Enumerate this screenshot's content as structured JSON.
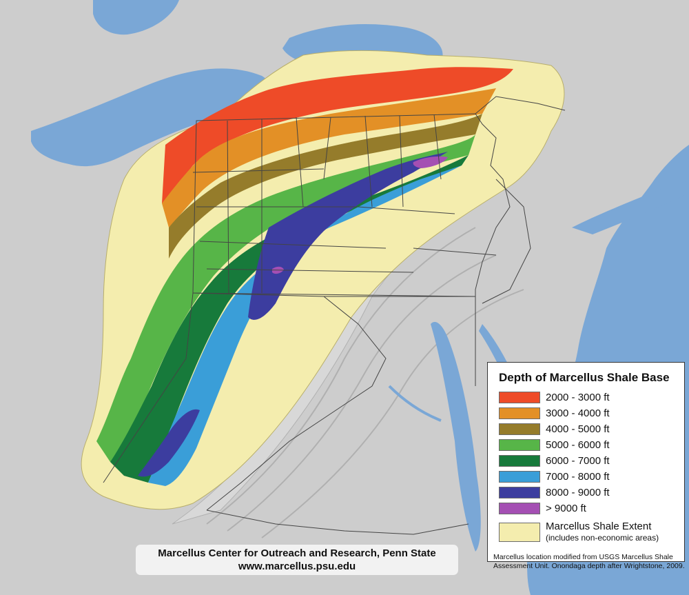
{
  "legend": {
    "title": "Depth of Marcellus Shale Base",
    "items": [
      {
        "label": "2000 - 3000 ft",
        "color": "#ee4b28"
      },
      {
        "label": "3000 - 4000 ft",
        "color": "#e39026"
      },
      {
        "label": "4000 - 5000 ft",
        "color": "#957c2b"
      },
      {
        "label": "5000 - 6000 ft",
        "color": "#57b548"
      },
      {
        "label": "6000 - 7000 ft",
        "color": "#177a3b"
      },
      {
        "label": "7000 - 8000 ft",
        "color": "#3a9ed8"
      },
      {
        "label": "8000 - 9000 ft",
        "color": "#3c3d9f"
      },
      {
        "label": "> 9000 ft",
        "color": "#a44fb3"
      }
    ],
    "extent": {
      "label": "Marcellus Shale Extent",
      "sublabel": "(includes non-economic areas)",
      "color": "#f4edae"
    }
  },
  "credit": {
    "line1": "Marcellus Center for Outreach and Research, Penn State",
    "line2": "www.marcellus.psu.edu"
  },
  "source_note": "Marcellus location modified from USGS Marcellus Shale Assessment Unit. Onondaga depth after Wrightstone, 2009.",
  "colors": {
    "water": "#7aa7d6",
    "land": "#cfcfcf",
    "border": "#444444"
  }
}
